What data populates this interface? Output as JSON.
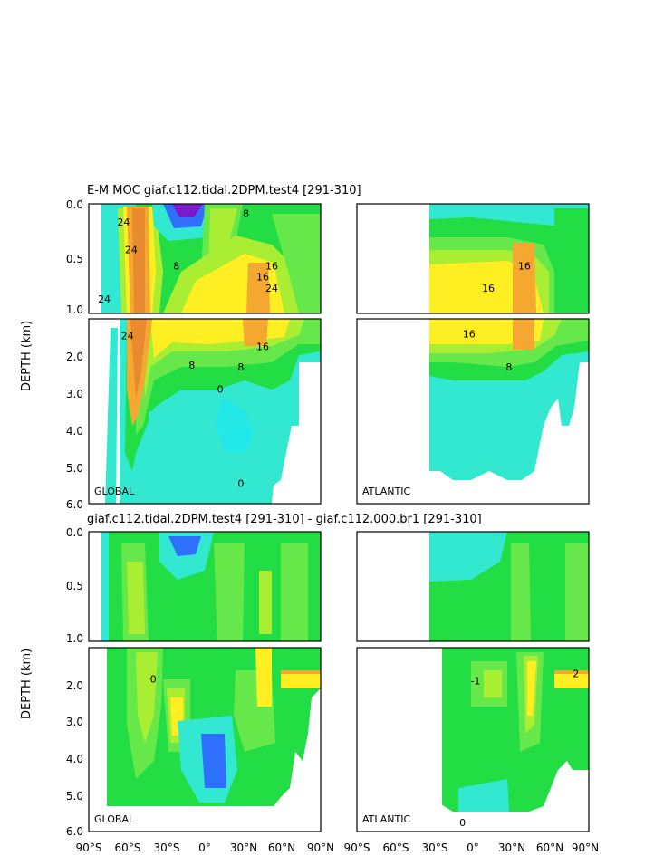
{
  "top_title": "E-M MOC  giaf.c112.tidal.2DPM.test4  [291-310]",
  "bottom_title": "giaf.c112.tidal.2DPM.test4  [291-310]  -  giaf.c112.000.br1  [291-310]",
  "ylabel": "DEPTH (km)",
  "yticks_upper": [
    "0.0",
    "0.5",
    "1.0"
  ],
  "yticks_lower": [
    "2.0",
    "3.0",
    "4.0",
    "5.0",
    "6.0"
  ],
  "xticks": [
    "90°S",
    "60°S",
    "30°S",
    "0°",
    "30°N",
    "60°N",
    "90°N"
  ],
  "region_global": "GLOBAL",
  "region_atlantic": "ATLANTIC",
  "colors": {
    "cyan": "#33e8d0",
    "green": "#22dd44",
    "lightgreen": "#66e84a",
    "yellowgreen": "#aaee33",
    "yellow": "#ffee22",
    "orange": "#f4a830",
    "deeporange": "#e88a30",
    "blue": "#3070ff",
    "purple": "#7a1acc"
  },
  "chart_data": [
    {
      "type": "heatmap",
      "title": "E-M MOC  giaf.c112.tidal.2DPM.test4  [291-310]",
      "region": "GLOBAL",
      "ylabel": "DEPTH (km)",
      "xlim": [
        -90,
        90
      ],
      "ylim": [
        6.0,
        0.0
      ],
      "contour_labels": [
        {
          "text": "24",
          "x": -63,
          "y": 0.2
        },
        {
          "text": "24",
          "x": -57,
          "y": 0.45
        },
        {
          "text": "24",
          "x": -78,
          "y": 0.9
        },
        {
          "text": "24",
          "x": -60,
          "y": 1.55
        },
        {
          "text": "8",
          "x": 32,
          "y": 0.12
        },
        {
          "text": "8",
          "x": -22,
          "y": 0.6
        },
        {
          "text": "16",
          "x": 45,
          "y": 0.7
        },
        {
          "text": "16",
          "x": 52,
          "y": 0.6
        },
        {
          "text": "24",
          "x": 52,
          "y": 0.8
        },
        {
          "text": "16",
          "x": 45,
          "y": 1.85
        },
        {
          "text": "8",
          "x": -10,
          "y": 2.35
        },
        {
          "text": "8",
          "x": 28,
          "y": 2.4
        },
        {
          "text": "0",
          "x": 12,
          "y": 3.0
        },
        {
          "text": "0",
          "x": 28,
          "y": 5.55
        }
      ]
    },
    {
      "type": "heatmap",
      "region": "ATLANTIC",
      "xlim": [
        -90,
        90
      ],
      "ylim": [
        6.0,
        0.0
      ],
      "contour_labels": [
        {
          "text": "16",
          "x": 40,
          "y": 0.6
        },
        {
          "text": "16",
          "x": 12,
          "y": 0.8
        },
        {
          "text": "16",
          "x": -3,
          "y": 1.5
        },
        {
          "text": "8",
          "x": 28,
          "y": 2.4
        }
      ]
    },
    {
      "type": "heatmap",
      "title": "giaf.c112.tidal.2DPM.test4  [291-310]  -  giaf.c112.000.br1  [291-310]",
      "region": "GLOBAL",
      "ylabel": "DEPTH (km)",
      "xlim": [
        -90,
        90
      ],
      "ylim": [
        6.0,
        0.0
      ],
      "contour_labels": [
        {
          "text": "0",
          "x": -40,
          "y": 1.95
        }
      ]
    },
    {
      "type": "heatmap",
      "region": "ATLANTIC",
      "xlim": [
        -90,
        90
      ],
      "ylim": [
        6.0,
        0.0
      ],
      "contour_labels": [
        {
          "text": "2",
          "x": 80,
          "y": 1.8
        },
        {
          "text": "-1",
          "x": 2,
          "y": 2.0
        },
        {
          "text": "0",
          "x": -8,
          "y": 5.85
        }
      ]
    }
  ]
}
